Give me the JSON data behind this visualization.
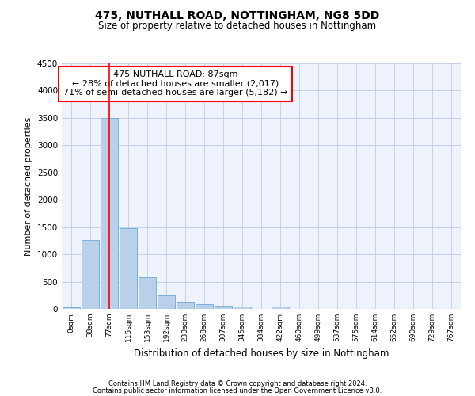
{
  "title1": "475, NUTHALL ROAD, NOTTINGHAM, NG8 5DD",
  "title2": "Size of property relative to detached houses in Nottingham",
  "xlabel": "Distribution of detached houses by size in Nottingham",
  "ylabel": "Number of detached properties",
  "bar_labels": [
    "0sqm",
    "38sqm",
    "77sqm",
    "115sqm",
    "153sqm",
    "192sqm",
    "230sqm",
    "268sqm",
    "307sqm",
    "345sqm",
    "384sqm",
    "422sqm",
    "460sqm",
    "499sqm",
    "537sqm",
    "575sqm",
    "614sqm",
    "652sqm",
    "690sqm",
    "729sqm",
    "767sqm"
  ],
  "bar_values": [
    30,
    1270,
    3500,
    1480,
    580,
    240,
    130,
    90,
    55,
    40,
    0,
    50,
    0,
    0,
    0,
    0,
    0,
    0,
    0,
    0,
    0
  ],
  "bar_color": "#b8d0ea",
  "bar_edge_color": "#6aaad4",
  "vline_x_idx": 2,
  "vline_color": "red",
  "annotation_text": "475 NUTHALL ROAD: 87sqm\n← 28% of detached houses are smaller (2,017)\n71% of semi-detached houses are larger (5,182) →",
  "annotation_box_color": "white",
  "annotation_box_edge": "red",
  "ylim": [
    0,
    4500
  ],
  "yticks": [
    0,
    500,
    1000,
    1500,
    2000,
    2500,
    3000,
    3500,
    4000,
    4500
  ],
  "footer1": "Contains HM Land Registry data © Crown copyright and database right 2024.",
  "footer2": "Contains public sector information licensed under the Open Government Licence v3.0.",
  "bg_color": "#edf2fb",
  "grid_color": "#c5cfe8"
}
